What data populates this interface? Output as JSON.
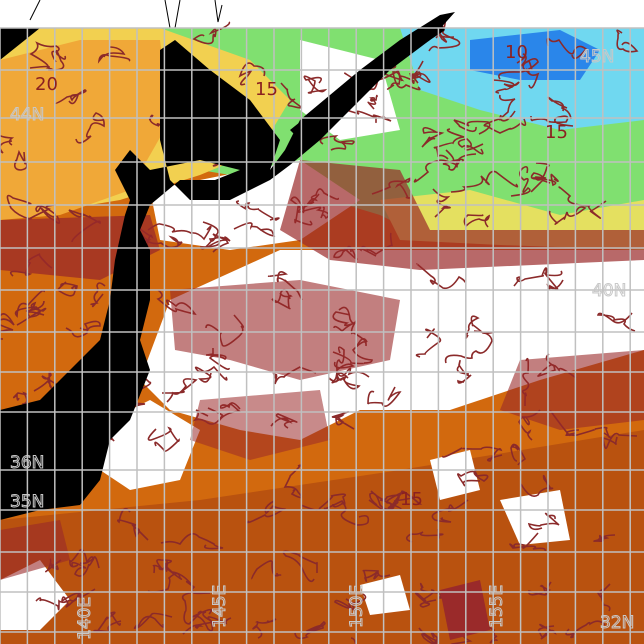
{
  "map": {
    "type": "sea surface temperature map",
    "colors": {
      "land": "#000000",
      "cloud_no_data": "#ffffff",
      "contour": "#8b2a2a",
      "grid": "#c0c0c0",
      "warm": "#d2690e",
      "warmest": "#b5470f",
      "mild": "#f0b040",
      "yellow": "#e8e060",
      "green": "#80e070",
      "cyan": "#60d0f0",
      "blue": "#2080e8"
    },
    "lat_labels": [
      "45N",
      "44N",
      "40N",
      "36N",
      "35N",
      "32N"
    ],
    "lon_labels": [
      "140E",
      "145E",
      "150E",
      "155E"
    ],
    "contour_labels": [
      "20",
      "15",
      "10",
      "15",
      "15"
    ]
  }
}
